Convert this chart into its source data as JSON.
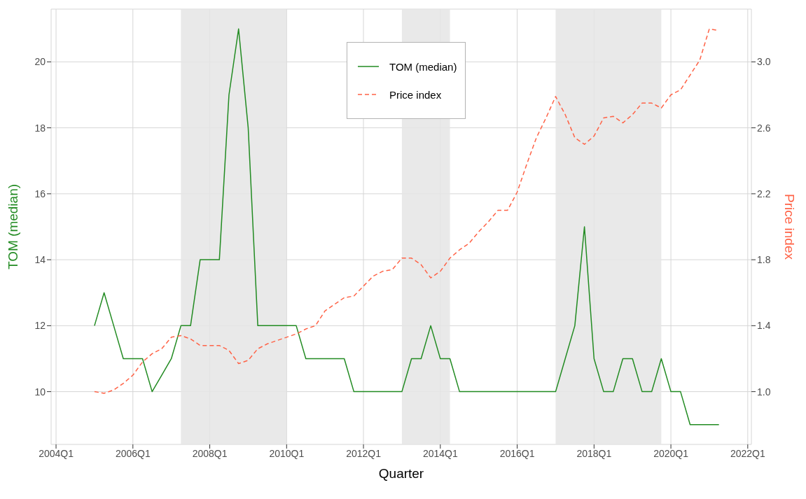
{
  "chart_data": {
    "type": "line",
    "xlabel": "Quarter",
    "ylabel": "TOM (median)",
    "y2label": "Price index",
    "x": [
      "2005-01",
      "2005-04",
      "2005-07",
      "2005-10",
      "2006-01",
      "2006-04",
      "2006-07",
      "2006-10",
      "2007-01",
      "2007-04",
      "2007-07",
      "2007-10",
      "2008-01",
      "2008-04",
      "2008-07",
      "2008-10",
      "2009-01",
      "2009-04",
      "2009-07",
      "2009-10",
      "2010-01",
      "2010-04",
      "2010-07",
      "2010-10",
      "2011-01",
      "2011-04",
      "2011-07",
      "2011-10",
      "2012-01",
      "2012-04",
      "2012-07",
      "2012-10",
      "2013-01",
      "2013-04",
      "2013-07",
      "2013-10",
      "2014-01",
      "2014-04",
      "2014-07",
      "2014-10",
      "2015-01",
      "2015-04",
      "2015-07",
      "2015-10",
      "2016-01",
      "2016-04",
      "2016-07",
      "2016-10",
      "2017-01",
      "2017-04",
      "2017-07",
      "2017-10",
      "2018-01",
      "2018-04",
      "2018-07",
      "2018-10",
      "2019-01",
      "2019-04",
      "2019-07",
      "2019-10",
      "2020-01",
      "2020-04",
      "2020-07",
      "2020-10",
      "2021-01",
      "2021-04"
    ],
    "series": [
      {
        "name": "TOM (median)",
        "color": "#228b22",
        "line_style": "solid",
        "values": [
          12,
          13,
          12,
          11,
          11,
          11,
          10,
          10.5,
          11,
          12,
          12,
          14,
          14,
          14,
          19,
          21,
          18,
          12,
          12,
          12,
          12,
          12,
          11,
          11,
          11,
          11,
          11,
          10,
          10,
          10,
          10,
          10,
          10,
          11,
          11,
          12,
          11,
          11,
          10,
          10,
          10,
          10,
          10,
          10,
          10,
          10,
          10,
          10,
          10,
          11,
          12,
          15,
          11,
          10,
          10,
          11,
          11,
          10,
          10,
          11,
          10,
          10,
          9,
          9,
          9,
          9
        ]
      },
      {
        "name": "Price index",
        "color": "#ff6347",
        "axis": "y2",
        "line_style": "dashed",
        "values": [
          1.0,
          0.99,
          1.01,
          1.05,
          1.1,
          1.18,
          1.23,
          1.26,
          1.33,
          1.34,
          1.32,
          1.28,
          1.28,
          1.28,
          1.25,
          1.17,
          1.19,
          1.26,
          1.29,
          1.31,
          1.33,
          1.35,
          1.38,
          1.4,
          1.49,
          1.53,
          1.57,
          1.58,
          1.64,
          1.7,
          1.73,
          1.74,
          1.81,
          1.81,
          1.77,
          1.69,
          1.73,
          1.81,
          1.86,
          1.9,
          1.97,
          2.03,
          2.1,
          2.1,
          2.21,
          2.38,
          2.54,
          2.66,
          2.79,
          2.68,
          2.54,
          2.5,
          2.55,
          2.66,
          2.67,
          2.63,
          2.68,
          2.75,
          2.75,
          2.72,
          2.8,
          2.83,
          2.92,
          3.01,
          3.2,
          3.19
        ]
      }
    ],
    "xlim": [
      "2003-11-15",
      "2022-02-05"
    ],
    "xticks": [
      {
        "value": "2004-01",
        "label": "2004Q1"
      },
      {
        "value": "2006-01",
        "label": "2006Q1"
      },
      {
        "value": "2008-01",
        "label": "2008Q1"
      },
      {
        "value": "2010-01",
        "label": "2010Q1"
      },
      {
        "value": "2012-01",
        "label": "2012Q1"
      },
      {
        "value": "2014-01",
        "label": "2014Q1"
      },
      {
        "value": "2016-01",
        "label": "2016Q1"
      },
      {
        "value": "2018-01",
        "label": "2018Q1"
      },
      {
        "value": "2020-01",
        "label": "2020Q1"
      },
      {
        "value": "2022-01",
        "label": "2022Q1"
      }
    ],
    "ylim": [
      8.4,
      21.6
    ],
    "yticks": [
      10,
      12,
      14,
      16,
      18,
      20
    ],
    "y2lim": [
      0.68,
      3.32
    ],
    "y2ticks": [
      {
        "value": 1,
        "label": "1.0"
      },
      1.4,
      1.8,
      2.2,
      2.6,
      {
        "value": 3,
        "label": "3.0"
      }
    ],
    "bands": [
      {
        "axis": "x",
        "from": "2007-04",
        "to": "2010-01",
        "color": "#e5e5e5"
      },
      {
        "axis": "x",
        "from": "2013-01",
        "to": "2014-04",
        "color": "#e5e5e5"
      },
      {
        "axis": "x",
        "from": "2017-01",
        "to": "2019-10",
        "color": "#e5e5e5"
      }
    ],
    "grid": true,
    "legend": "top",
    "marker": "none"
  }
}
